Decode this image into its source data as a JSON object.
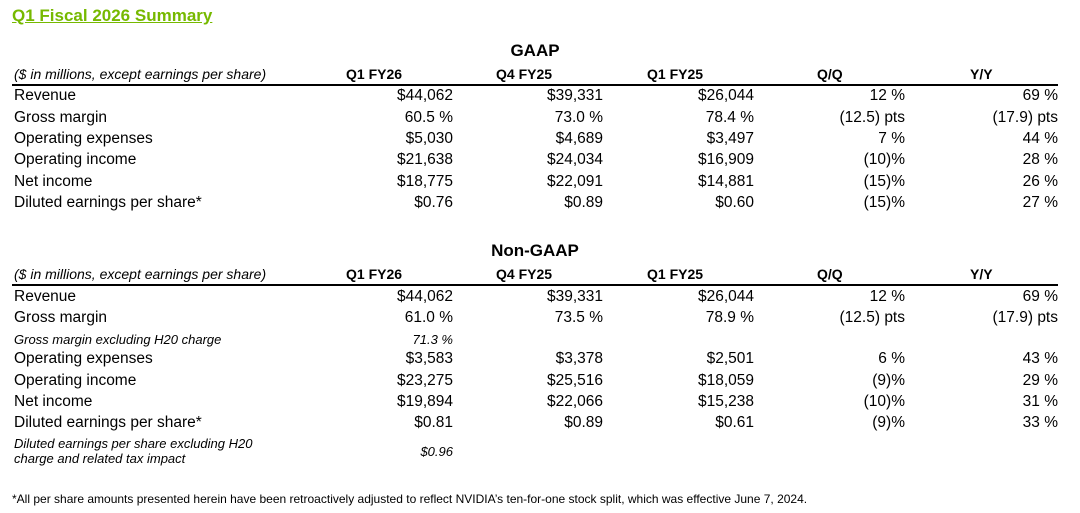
{
  "title": "Q1 Fiscal 2026 Summary",
  "gaap": {
    "heading": "GAAP",
    "units": "($ in millions, except earnings per share)",
    "columns": [
      "Q1 FY26",
      "Q4 FY25",
      "Q1 FY25",
      "Q/Q",
      "Y/Y"
    ],
    "rows": [
      {
        "label": "Revenue",
        "q1fy26": "$44,062",
        "q4fy25": "$39,331",
        "q1fy25": "$26,044",
        "qq": "12 %",
        "yy": "69 %"
      },
      {
        "label": "Gross margin",
        "q1fy26": "60.5 %",
        "q4fy25": "73.0 %",
        "q1fy25": "78.4 %",
        "qq": "(12.5) pts",
        "yy": "(17.9) pts"
      },
      {
        "label": "Operating expenses",
        "q1fy26": "$5,030",
        "q4fy25": "$4,689",
        "q1fy25": "$3,497",
        "qq": "7 %",
        "yy": "44 %"
      },
      {
        "label": "Operating income",
        "q1fy26": "$21,638",
        "q4fy25": "$24,034",
        "q1fy25": "$16,909",
        "qq": "(10)%",
        "yy": "28 %"
      },
      {
        "label": "Net income",
        "q1fy26": "$18,775",
        "q4fy25": "$22,091",
        "q1fy25": "$14,881",
        "qq": "(15)%",
        "yy": "26 %"
      },
      {
        "label": "Diluted earnings per share*",
        "q1fy26": "$0.76",
        "q4fy25": "$0.89",
        "q1fy25": "$0.60",
        "qq": "(15)%",
        "yy": "27 %"
      }
    ]
  },
  "nongaap": {
    "heading": "Non-GAAP",
    "units": "($ in millions, except earnings per share)",
    "columns": [
      "Q1 FY26",
      "Q4 FY25",
      "Q1 FY25",
      "Q/Q",
      "Y/Y"
    ],
    "rows": [
      {
        "label": "Revenue",
        "q1fy26": "$44,062",
        "q4fy25": "$39,331",
        "q1fy25": "$26,044",
        "qq": "12 %",
        "yy": "69 %"
      },
      {
        "label": "Gross margin",
        "q1fy26": "61.0 %",
        "q4fy25": "73.5 %",
        "q1fy25": "78.9 %",
        "qq": "(12.5) pts",
        "yy": "(17.9) pts"
      },
      {
        "label": "Gross margin excluding H20 charge",
        "q1fy26": "71.3 %"
      },
      {
        "label": "Operating expenses",
        "q1fy26": "$3,583",
        "q4fy25": "$3,378",
        "q1fy25": "$2,501",
        "qq": "6 %",
        "yy": "43 %"
      },
      {
        "label": "Operating income",
        "q1fy26": "$23,275",
        "q4fy25": "$25,516",
        "q1fy25": "$18,059",
        "qq": "(9)%",
        "yy": "29 %"
      },
      {
        "label": "Net income",
        "q1fy26": "$19,894",
        "q4fy25": "$22,066",
        "q1fy25": "$15,238",
        "qq": "(10)%",
        "yy": "31 %"
      },
      {
        "label": "Diluted earnings per share*",
        "q1fy26": "$0.81",
        "q4fy25": "$0.89",
        "q1fy25": "$0.61",
        "qq": "(9)%",
        "yy": "33 %"
      },
      {
        "label_line1": "Diluted earnings per share excluding H20",
        "label_line2": "charge and related tax impact",
        "q1fy26": "$0.96"
      }
    ]
  },
  "footnote": "*All per share amounts presented herein have been retroactively adjusted to reflect NVIDIA’s ten-for-one stock split, which was effective June 7, 2024.",
  "colors": {
    "title": "#76b900",
    "text": "#000000",
    "rule": "#000000"
  }
}
